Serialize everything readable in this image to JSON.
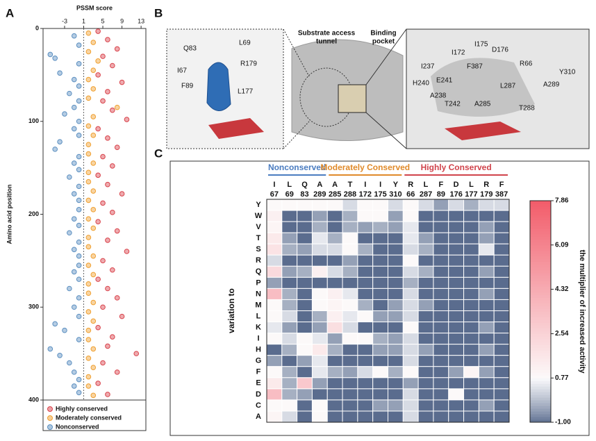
{
  "panel_labels": [
    "A",
    "B",
    "C"
  ],
  "panel_b": {
    "tunnel_label": [
      "Substrate access",
      "tunnel"
    ],
    "pocket_label": [
      "Binding",
      "pocket"
    ],
    "left_residues": [
      "Q83",
      "L69",
      "I67",
      "R179",
      "F89",
      "L177"
    ],
    "right_residues": [
      "I175",
      "D176",
      "I172",
      "I237",
      "F387",
      "R66",
      "E241",
      "Y310",
      "H240",
      "A289",
      "L287",
      "A238",
      "T242",
      "A285",
      "T288"
    ]
  },
  "chart_data": [
    {
      "type": "scatter",
      "xlabel": "PSSM score",
      "ylabel": "Amino acid position",
      "xlim": [
        -7.5,
        14
      ],
      "xticks": [
        -3,
        1,
        5,
        9,
        13
      ],
      "ylim": [
        0,
        400
      ],
      "yticks": [
        0,
        100,
        200,
        300,
        400
      ],
      "reference_x": 1,
      "series": [
        {
          "name": "Highly conserved",
          "color": "#d9434b",
          "x": [
            4,
            6,
            8,
            5,
            7,
            4,
            9,
            6,
            5,
            7,
            10,
            4,
            6,
            8,
            5,
            7,
            4,
            6,
            9,
            5,
            7,
            4,
            8,
            6,
            10,
            5,
            7,
            4,
            6,
            8,
            5,
            9,
            4,
            7,
            6,
            12,
            5,
            8,
            4,
            6
          ],
          "values": [
            3,
            12,
            22,
            30,
            40,
            50,
            58,
            68,
            78,
            88,
            98,
            108,
            118,
            128,
            138,
            148,
            158,
            168,
            178,
            188,
            198,
            208,
            218,
            228,
            240,
            250,
            260,
            270,
            280,
            290,
            300,
            310,
            322,
            332,
            342,
            350,
            360,
            370,
            382,
            394
          ]
        },
        {
          "name": "Moderately conserved",
          "color": "#f0a030",
          "x": [
            2,
            3,
            2,
            4,
            3,
            2,
            3,
            2,
            8,
            3,
            2,
            3,
            2,
            2,
            3,
            2,
            2,
            3,
            2,
            3,
            2,
            3,
            2,
            2,
            3,
            2,
            3,
            2,
            2,
            3,
            2,
            3,
            2,
            2,
            3,
            2,
            3,
            2,
            2,
            3
          ],
          "values": [
            5,
            15,
            25,
            35,
            45,
            55,
            65,
            75,
            85,
            95,
            105,
            115,
            125,
            135,
            145,
            155,
            165,
            175,
            185,
            195,
            205,
            215,
            225,
            235,
            245,
            255,
            265,
            275,
            285,
            295,
            305,
            315,
            325,
            335,
            345,
            355,
            365,
            375,
            385,
            395
          ]
        },
        {
          "name": "Nonconserved",
          "color": "#5b8fc0",
          "x": [
            -1,
            0,
            -6,
            -5,
            0,
            -4,
            -1,
            0,
            -2,
            0,
            -1,
            -3,
            0,
            -1,
            0,
            -4,
            -5,
            0,
            -1,
            0,
            -2,
            0,
            -1,
            0,
            0,
            -1,
            0,
            -2,
            0,
            -1,
            0,
            0,
            -1,
            0,
            -2,
            0,
            -1,
            0,
            -5,
            -3,
            0,
            -6,
            -4,
            -2,
            -1,
            0,
            -1,
            0
          ],
          "values": [
            8,
            18,
            28,
            32,
            38,
            48,
            55,
            62,
            70,
            78,
            85,
            92,
            100,
            108,
            115,
            122,
            130,
            138,
            145,
            152,
            160,
            170,
            178,
            185,
            195,
            205,
            212,
            220,
            230,
            238,
            245,
            255,
            262,
            270,
            280,
            290,
            300,
            310,
            318,
            325,
            335,
            345,
            352,
            360,
            370,
            378,
            385,
            392
          ]
        }
      ]
    },
    {
      "type": "heatmap",
      "ylabel": "variation to",
      "colorbar_label": "the multiplier of increased activity",
      "groups": [
        {
          "name": "Nonconserved",
          "color": "#4a7cc0",
          "span": 4
        },
        {
          "name": "Moderately Conserved",
          "color": "#e08a2a",
          "span": 5
        },
        {
          "name": "Highly Conserved",
          "color": "#d0434b",
          "span": 7
        }
      ],
      "columns": [
        [
          "I",
          "67"
        ],
        [
          "L",
          "69"
        ],
        [
          "Q",
          "83"
        ],
        [
          "A",
          "289"
        ],
        [
          "A",
          "285"
        ],
        [
          "T",
          "288"
        ],
        [
          "I",
          "172"
        ],
        [
          "I",
          "175"
        ],
        [
          "Y",
          "310"
        ],
        [
          "R",
          "66"
        ],
        [
          "L",
          "287"
        ],
        [
          "F",
          "89"
        ],
        [
          "D",
          "176"
        ],
        [
          "L",
          "177"
        ],
        [
          "R",
          "179"
        ],
        [
          "F",
          "387"
        ]
      ],
      "rows": [
        "Y",
        "W",
        "V",
        "T",
        "S",
        "R",
        "Q",
        "P",
        "N",
        "M",
        "L",
        "K",
        "I",
        "H",
        "G",
        "F",
        "E",
        "D",
        "C",
        "A"
      ],
      "clim": [
        -1,
        7.86
      ],
      "cticks": [
        {
          "value": -1,
          "label": "-1.00"
        },
        0.77,
        2.54,
        4.32,
        6.09,
        7.86
      ],
      "values": [
        [
          0.8,
          0.8,
          0.8,
          0.8,
          0.8,
          0.3,
          0.8,
          0.8,
          0.3,
          0.8,
          0.3,
          -0.5,
          0.3,
          -0.3,
          0.3,
          0.3
        ],
        [
          1.2,
          -1,
          -1,
          -0.5,
          -1,
          -0.3,
          0.8,
          0.8,
          -0.5,
          0.8,
          -1,
          -1,
          -1,
          -1,
          -1,
          -1
        ],
        [
          1.0,
          -1,
          -1,
          -0.3,
          -1,
          -0.3,
          -0.5,
          -0.3,
          -0.5,
          0.5,
          -1,
          -1,
          -1,
          -1,
          -0.5,
          -1
        ],
        [
          1.5,
          -0.5,
          -1,
          0.5,
          -0.3,
          0.8,
          -1,
          -1,
          -1,
          0.5,
          -0.5,
          -1,
          -1,
          -1,
          -0.5,
          -1
        ],
        [
          1.8,
          -0.3,
          -0.5,
          0.3,
          0.3,
          0.8,
          -0.3,
          -1,
          -1,
          0.3,
          -0.3,
          -1,
          -1,
          -1,
          0.5,
          -1
        ],
        [
          0.3,
          -1,
          -1,
          -1,
          -1,
          -0.5,
          -1,
          -1,
          -1,
          0.8,
          -1,
          -1,
          -1,
          -1,
          -1,
          -1
        ],
        [
          2.2,
          -0.5,
          -0.3,
          1.2,
          0.3,
          -0.3,
          -1,
          -1,
          -1,
          0.3,
          -0.3,
          -1,
          -1,
          -1,
          -0.5,
          -1
        ],
        [
          -0.5,
          -1,
          -1,
          -1,
          -1,
          -1,
          -1,
          -1,
          -1,
          -0.3,
          -1,
          -1,
          -1,
          -1,
          -1,
          -1
        ],
        [
          3.5,
          -0.3,
          -1,
          0.8,
          1.2,
          0.5,
          -1,
          -1,
          -1,
          0.3,
          -1,
          -1,
          -1,
          -1,
          -0.5,
          -1
        ],
        [
          0.8,
          -0.3,
          -1,
          0.8,
          1.0,
          0.8,
          -0.3,
          -1,
          -0.5,
          0.3,
          -0.5,
          -1,
          -1,
          -1,
          -1,
          -1
        ],
        [
          0.8,
          0.3,
          -1,
          -0.3,
          1.2,
          0.5,
          0.8,
          -0.5,
          -0.5,
          0.3,
          -1,
          -1,
          -1,
          -1,
          -1,
          -1
        ],
        [
          0.5,
          -0.5,
          -1,
          -0.5,
          2.0,
          0.3,
          -1,
          -1,
          -1,
          0.8,
          -1,
          -1,
          -1,
          -1,
          -0.5,
          -1
        ],
        [
          0.8,
          0.3,
          0.8,
          0.5,
          -0.5,
          0.8,
          0.8,
          -0.3,
          -0.5,
          0.3,
          -1,
          -1,
          -1,
          -1,
          -1,
          -1
        ],
        [
          -1,
          -0.3,
          0.8,
          1.5,
          -0.3,
          -1,
          -1,
          -0.5,
          -0.5,
          0.3,
          -0.5,
          -1,
          -1,
          -1,
          -0.5,
          -1
        ],
        [
          -0.5,
          -1,
          -0.5,
          0.5,
          -1,
          -1,
          -1,
          -1,
          -1,
          0.3,
          -1,
          -1,
          -1,
          -1,
          -1,
          -1
        ],
        [
          0.8,
          -0.3,
          -1,
          0.5,
          -0.3,
          -0.5,
          0.3,
          0.8,
          -0.3,
          0.8,
          -1,
          -1,
          -0.5,
          1.0,
          -0.5,
          -1
        ],
        [
          1.5,
          -0.3,
          3.0,
          -0.5,
          -1,
          -1,
          -1,
          -1,
          -1,
          -0.5,
          -1,
          -1,
          -1,
          -1,
          -1,
          -1
        ],
        [
          3.5,
          -0.3,
          -0.5,
          -1,
          -1,
          -1,
          -1,
          -1,
          -1,
          0.3,
          -1,
          -1,
          0.8,
          -1,
          -1,
          -1
        ],
        [
          0.8,
          0.8,
          -1,
          0.8,
          -1,
          -1,
          -1,
          -0.5,
          -0.5,
          0.3,
          -1,
          -1,
          -1,
          -1,
          -0.5,
          -1
        ],
        [
          1.0,
          0.3,
          -1,
          0.8,
          -1,
          -1,
          -1,
          -1,
          -1,
          0.3,
          -1,
          -1,
          -1,
          -1,
          -1,
          -1
        ]
      ]
    }
  ]
}
